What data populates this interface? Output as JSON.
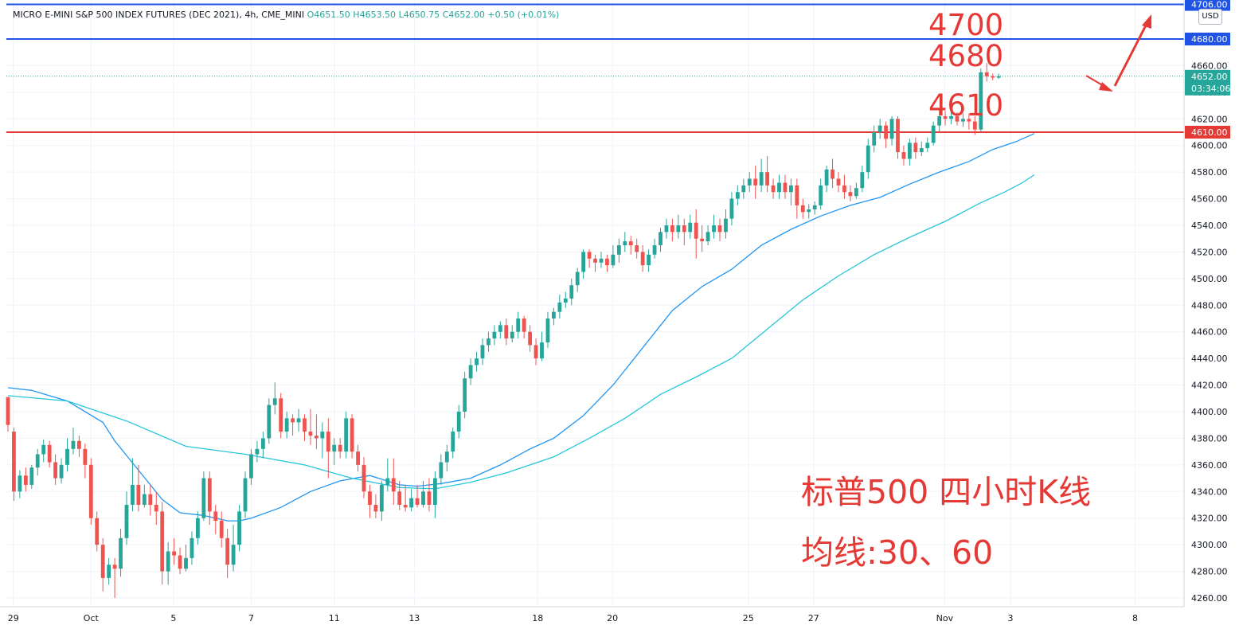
{
  "header": {
    "symbol": "MICRO E-MINI S&P 500 INDEX FUTURES (DEC 2021), 4h, CME_MINI",
    "open": "O4651.50",
    "high": "H4653.50",
    "low": "L4650.75",
    "close": "C4652.00",
    "change": "+0.50 (+0.01%)"
  },
  "currency_button": "USD",
  "annotations": {
    "level_4700": "4700",
    "level_4680": "4680",
    "level_4610": "4610",
    "caption_title": "标普500 四小时K线",
    "caption_ma": "均线:30、60"
  },
  "colors": {
    "up": "#26a69a",
    "down": "#ef5350",
    "ma30": "#2196f3",
    "ma60": "#26c6da",
    "hline_blue": "#1e53e5",
    "hline_red": "#e53935",
    "annotation": "#e53935",
    "price_label_bg": "#26a69a"
  },
  "chart_data": {
    "type": "candlestick",
    "symbol": "MICRO E-MINI S&P 500 INDEX FUTURES (DEC 2021)",
    "interval": "4h",
    "ylim": [
      4252,
      4706
    ],
    "y_ticks": [
      "4260.00",
      "4280.00",
      "4300.00",
      "4320.00",
      "4340.00",
      "4360.00",
      "4380.00",
      "4400.00",
      "4420.00",
      "4440.00",
      "4460.00",
      "4480.00",
      "4500.00",
      "4520.00",
      "4540.00",
      "4560.00",
      "4580.00",
      "4600.00",
      "4620.00",
      "4640.00",
      "4660.00"
    ],
    "x_ticks": [
      {
        "label": "29",
        "bar": 0.9
      },
      {
        "label": "Oct",
        "bar": 14
      },
      {
        "label": "5",
        "bar": 27.9
      },
      {
        "label": "7",
        "bar": 41
      },
      {
        "label": "11",
        "bar": 55
      },
      {
        "label": "13",
        "bar": 68.5
      },
      {
        "label": "18",
        "bar": 89.3
      },
      {
        "label": "20",
        "bar": 101.9
      },
      {
        "label": "25",
        "bar": 124.8
      },
      {
        "label": "27",
        "bar": 135.8
      },
      {
        "label": "Nov",
        "bar": 157.9
      },
      {
        "label": "3",
        "bar": 169
      },
      {
        "label": "8",
        "bar": 190
      }
    ],
    "candles": [
      [
        4411,
        4390,
        4385,
        4408
      ],
      [
        4385,
        4340,
        4333,
        4388
      ],
      [
        4340,
        4352,
        4335,
        4356
      ],
      [
        4352,
        4345,
        4340,
        4358
      ],
      [
        4345,
        4358,
        4342,
        4360
      ],
      [
        4358,
        4368,
        4352,
        4372
      ],
      [
        4368,
        4375,
        4362,
        4379
      ],
      [
        4375,
        4362,
        4358,
        4378
      ],
      [
        4362,
        4350,
        4345,
        4368
      ],
      [
        4350,
        4360,
        4346,
        4365
      ],
      [
        4360,
        4372,
        4355,
        4380
      ],
      [
        4372,
        4378,
        4368,
        4388
      ],
      [
        4378,
        4372,
        4366,
        4382
      ],
      [
        4372,
        4360,
        4350,
        4376
      ],
      [
        4360,
        4320,
        4315,
        4365
      ],
      [
        4320,
        4300,
        4295,
        4325
      ],
      [
        4300,
        4275,
        4265,
        4305
      ],
      [
        4275,
        4285,
        4270,
        4290
      ],
      [
        4285,
        4282,
        4260,
        4290
      ],
      [
        4282,
        4305,
        4276,
        4312
      ],
      [
        4305,
        4330,
        4300,
        4340
      ],
      [
        4330,
        4345,
        4325,
        4365
      ],
      [
        4345,
        4330,
        4325,
        4360
      ],
      [
        4330,
        4338,
        4328,
        4345
      ],
      [
        4338,
        4330,
        4322,
        4345
      ],
      [
        4330,
        4325,
        4315,
        4340
      ],
      [
        4325,
        4280,
        4270,
        4332
      ],
      [
        4280,
        4295,
        4270,
        4302
      ],
      [
        4295,
        4292,
        4285,
        4305
      ],
      [
        4292,
        4282,
        4278,
        4298
      ],
      [
        4282,
        4290,
        4280,
        4300
      ],
      [
        4290,
        4305,
        4285,
        4310
      ],
      [
        4305,
        4320,
        4300,
        4325
      ],
      [
        4320,
        4350,
        4318,
        4355
      ],
      [
        4350,
        4325,
        4315,
        4355
      ],
      [
        4325,
        4318,
        4308,
        4330
      ],
      [
        4318,
        4305,
        4298,
        4325
      ],
      [
        4305,
        4285,
        4275,
        4312
      ],
      [
        4285,
        4300,
        4280,
        4315
      ],
      [
        4300,
        4325,
        4295,
        4330
      ],
      [
        4325,
        4350,
        4320,
        4355
      ],
      [
        4350,
        4368,
        4345,
        4372
      ],
      [
        4368,
        4372,
        4362,
        4378
      ],
      [
        4372,
        4380,
        4365,
        4385
      ],
      [
        4380,
        4405,
        4376,
        4410
      ],
      [
        4405,
        4410,
        4398,
        4422
      ],
      [
        4410,
        4385,
        4380,
        4414
      ],
      [
        4385,
        4395,
        4380,
        4400
      ],
      [
        4395,
        4392,
        4382,
        4398
      ],
      [
        4392,
        4395,
        4385,
        4402
      ],
      [
        4395,
        4385,
        4378,
        4398
      ],
      [
        4385,
        4382,
        4375,
        4402
      ],
      [
        4382,
        4380,
        4372,
        4398
      ],
      [
        4380,
        4385,
        4365,
        4392
      ],
      [
        4385,
        4370,
        4350,
        4395
      ],
      [
        4370,
        4375,
        4360,
        4380
      ],
      [
        4375,
        4370,
        4365,
        4380
      ],
      [
        4370,
        4395,
        4365,
        4400
      ],
      [
        4395,
        4370,
        4365,
        4398
      ],
      [
        4370,
        4360,
        4355,
        4375
      ],
      [
        4360,
        4340,
        4335,
        4366
      ],
      [
        4340,
        4330,
        4320,
        4345
      ],
      [
        4330,
        4325,
        4320,
        4338
      ],
      [
        4325,
        4345,
        4318,
        4348
      ],
      [
        4345,
        4350,
        4340,
        4365
      ],
      [
        4350,
        4340,
        4330,
        4365
      ],
      [
        4340,
        4330,
        4326,
        4348
      ],
      [
        4330,
        4328,
        4325,
        4345
      ],
      [
        4328,
        4335,
        4325,
        4342
      ],
      [
        4335,
        4330,
        4328,
        4345
      ],
      [
        4330,
        4340,
        4328,
        4348
      ],
      [
        4340,
        4330,
        4325,
        4350
      ],
      [
        4330,
        4350,
        4320,
        4355
      ],
      [
        4350,
        4362,
        4345,
        4368
      ],
      [
        4362,
        4370,
        4355,
        4375
      ],
      [
        4370,
        4385,
        4365,
        4388
      ],
      [
        4385,
        4400,
        4380,
        4405
      ],
      [
        4400,
        4425,
        4395,
        4430
      ],
      [
        4425,
        4435,
        4420,
        4440
      ],
      [
        4435,
        4440,
        4430,
        4445
      ],
      [
        4440,
        4450,
        4435,
        4455
      ],
      [
        4450,
        4455,
        4445,
        4460
      ],
      [
        4455,
        4460,
        4450,
        4465
      ],
      [
        4460,
        4465,
        4455,
        4468
      ],
      [
        4465,
        4455,
        4450,
        4470
      ],
      [
        4455,
        4460,
        4452,
        4465
      ],
      [
        4460,
        4470,
        4455,
        4475
      ],
      [
        4470,
        4460,
        4455,
        4472
      ],
      [
        4460,
        4450,
        4445,
        4465
      ],
      [
        4450,
        4440,
        4435,
        4455
      ],
      [
        4440,
        4452,
        4438,
        4460
      ],
      [
        4452,
        4470,
        4448,
        4475
      ],
      [
        4470,
        4475,
        4465,
        4478
      ],
      [
        4475,
        4482,
        4470,
        4488
      ],
      [
        4482,
        4485,
        4478,
        4490
      ],
      [
        4485,
        4495,
        4480,
        4500
      ],
      [
        4495,
        4505,
        4490,
        4508
      ],
      [
        4505,
        4520,
        4500,
        4522
      ],
      [
        4520,
        4515,
        4508,
        4522
      ],
      [
        4515,
        4512,
        4505,
        4518
      ],
      [
        4512,
        4515,
        4508,
        4520
      ],
      [
        4515,
        4510,
        4505,
        4518
      ],
      [
        4510,
        4518,
        4508,
        4525
      ],
      [
        4518,
        4525,
        4512,
        4530
      ],
      [
        4525,
        4528,
        4520,
        4535
      ],
      [
        4528,
        4525,
        4518,
        4532
      ],
      [
        4525,
        4520,
        4515,
        4530
      ],
      [
        4520,
        4510,
        4505,
        4525
      ],
      [
        4510,
        4518,
        4505,
        4522
      ],
      [
        4518,
        4525,
        4515,
        4530
      ],
      [
        4525,
        4535,
        4520,
        4538
      ],
      [
        4535,
        4540,
        4530,
        4545
      ],
      [
        4540,
        4535,
        4528,
        4545
      ],
      [
        4535,
        4540,
        4530,
        4548
      ],
      [
        4540,
        4535,
        4525,
        4545
      ],
      [
        4535,
        4542,
        4530,
        4548
      ],
      [
        4542,
        4530,
        4515,
        4552
      ],
      [
        4530,
        4528,
        4520,
        4540
      ],
      [
        4528,
        4535,
        4525,
        4540
      ],
      [
        4535,
        4540,
        4530,
        4548
      ],
      [
        4540,
        4535,
        4528,
        4545
      ],
      [
        4535,
        4545,
        4530,
        4552
      ],
      [
        4545,
        4560,
        4540,
        4565
      ],
      [
        4560,
        4565,
        4555,
        4570
      ],
      [
        4565,
        4570,
        4560,
        4575
      ],
      [
        4570,
        4575,
        4565,
        4580
      ],
      [
        4575,
        4570,
        4560,
        4585
      ],
      [
        4570,
        4580,
        4565,
        4590
      ],
      [
        4580,
        4570,
        4565,
        4592
      ],
      [
        4570,
        4565,
        4560,
        4575
      ],
      [
        4565,
        4572,
        4560,
        4578
      ],
      [
        4572,
        4565,
        4560,
        4578
      ],
      [
        4565,
        4570,
        4555,
        4575
      ],
      [
        4570,
        4555,
        4545,
        4575
      ],
      [
        4555,
        4550,
        4545,
        4560
      ],
      [
        4550,
        4552,
        4545,
        4556
      ],
      [
        4552,
        4555,
        4548,
        4558
      ],
      [
        4555,
        4570,
        4552,
        4575
      ],
      [
        4570,
        4582,
        4565,
        4585
      ],
      [
        4582,
        4575,
        4568,
        4590
      ],
      [
        4575,
        4570,
        4565,
        4580
      ],
      [
        4570,
        4565,
        4560,
        4578
      ],
      [
        4565,
        4562,
        4558,
        4570
      ],
      [
        4562,
        4568,
        4560,
        4572
      ],
      [
        4568,
        4580,
        4565,
        4585
      ],
      [
        4580,
        4600,
        4575,
        4605
      ],
      [
        4600,
        4610,
        4595,
        4615
      ],
      [
        4610,
        4615,
        4605,
        4620
      ],
      [
        4615,
        4605,
        4598,
        4618
      ],
      [
        4605,
        4620,
        4600,
        4622
      ],
      [
        4620,
        4595,
        4590,
        4622
      ],
      [
        4595,
        4590,
        4585,
        4600
      ],
      [
        4590,
        4602,
        4585,
        4605
      ],
      [
        4602,
        4595,
        4590,
        4606
      ],
      [
        4595,
        4598,
        4592,
        4603
      ],
      [
        4598,
        4602,
        4595,
        4606
      ],
      [
        4602,
        4615,
        4600,
        4618
      ],
      [
        4615,
        4622,
        4610,
        4628
      ],
      [
        4622,
        4620,
        4615,
        4626
      ],
      [
        4620,
        4622,
        4616,
        4626
      ],
      [
        4622,
        4618,
        4615,
        4625
      ],
      [
        4618,
        4620,
        4614,
        4624
      ],
      [
        4620,
        4618,
        4612,
        4624
      ],
      [
        4618,
        4612,
        4608,
        4622
      ],
      [
        4612,
        4655,
        4610,
        4658
      ],
      [
        4655,
        4652,
        4648,
        4662
      ],
      [
        4652,
        4651,
        4649,
        4654
      ],
      [
        4651,
        4652,
        4650,
        4654
      ]
    ],
    "series": [
      {
        "name": "MA30",
        "values": [
          [
            0,
            4418
          ],
          [
            4,
            4416
          ],
          [
            10,
            4408
          ],
          [
            16,
            4392
          ],
          [
            18,
            4378
          ],
          [
            22,
            4356
          ],
          [
            26,
            4334
          ],
          [
            29,
            4324
          ],
          [
            33,
            4322
          ],
          [
            37,
            4318
          ],
          [
            39,
            4318
          ],
          [
            41,
            4320
          ],
          [
            46,
            4328
          ],
          [
            51,
            4340
          ],
          [
            56,
            4348
          ],
          [
            61,
            4352
          ],
          [
            66,
            4345
          ],
          [
            69,
            4344
          ],
          [
            73,
            4346
          ],
          [
            78,
            4350
          ],
          [
            83,
            4360
          ],
          [
            88,
            4372
          ],
          [
            92,
            4380
          ],
          [
            97,
            4397
          ],
          [
            102,
            4420
          ],
          [
            107,
            4448
          ],
          [
            112,
            4476
          ],
          [
            117,
            4494
          ],
          [
            122,
            4507
          ],
          [
            127,
            4525
          ],
          [
            132,
            4537
          ],
          [
            137,
            4547
          ],
          [
            142,
            4555
          ],
          [
            147,
            4561
          ],
          [
            152,
            4571
          ],
          [
            157,
            4580
          ],
          [
            162,
            4588
          ],
          [
            166,
            4597
          ],
          [
            170,
            4603
          ],
          [
            173,
            4609
          ]
        ]
      },
      {
        "name": "MA60",
        "values": [
          [
            0,
            4412
          ],
          [
            10,
            4408
          ],
          [
            20,
            4393
          ],
          [
            30,
            4374
          ],
          [
            40,
            4368
          ],
          [
            50,
            4360
          ],
          [
            58,
            4350
          ],
          [
            66,
            4343
          ],
          [
            72,
            4342
          ],
          [
            78,
            4347
          ],
          [
            84,
            4354
          ],
          [
            92,
            4366
          ],
          [
            98,
            4380
          ],
          [
            104,
            4395
          ],
          [
            110,
            4413
          ],
          [
            116,
            4426
          ],
          [
            122,
            4440
          ],
          [
            128,
            4462
          ],
          [
            134,
            4484
          ],
          [
            140,
            4502
          ],
          [
            146,
            4518
          ],
          [
            152,
            4531
          ],
          [
            158,
            4543
          ],
          [
            164,
            4557
          ],
          [
            168,
            4565
          ],
          [
            171,
            4572
          ],
          [
            173,
            4578
          ]
        ]
      }
    ],
    "horizontal_lines": [
      {
        "price": 4706,
        "label": "4706.00",
        "color": "blue"
      },
      {
        "price": 4680,
        "label": "4680.00",
        "color": "blue"
      },
      {
        "price": 4610,
        "label": "4610.00",
        "color": "red"
      }
    ],
    "last_price": {
      "value": "4652.00",
      "countdown": "03:34:06"
    }
  }
}
